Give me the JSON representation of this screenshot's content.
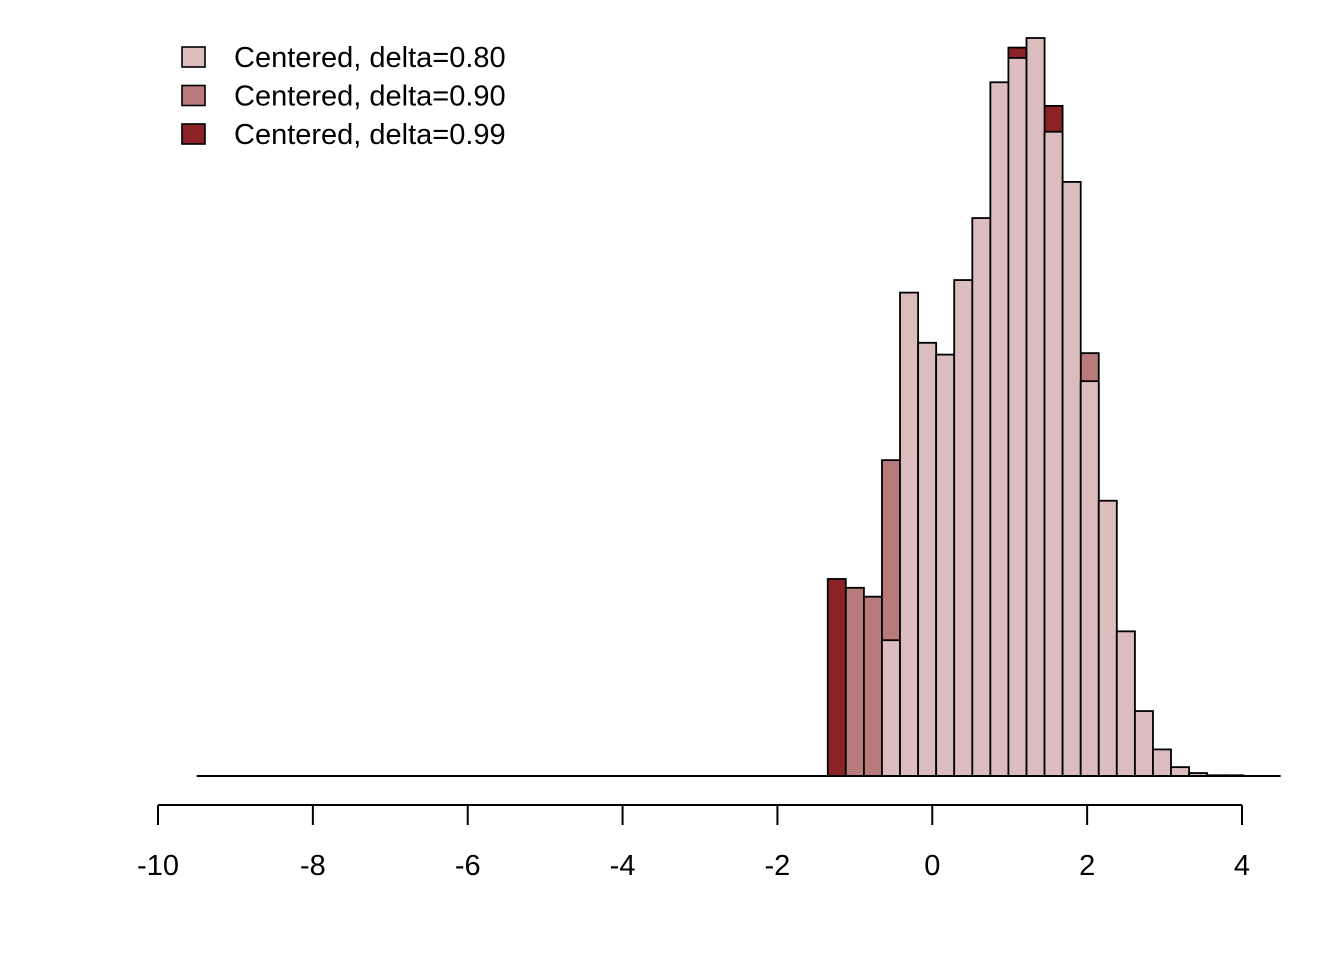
{
  "chart_data": {
    "type": "bar",
    "subtype": "overlaid-histogram",
    "title": "",
    "xlabel": "",
    "ylabel": "",
    "xlim": [
      -10,
      4
    ],
    "ylim": [
      0,
      1
    ],
    "y_axis_shown": false,
    "grid": false,
    "legend_position": "top-left",
    "bin_width": 0.233,
    "x_ticks": [
      -10,
      -8,
      -6,
      -4,
      -2,
      0,
      2,
      4
    ],
    "series": [
      {
        "name": "Centered, delta=0.80",
        "color": "#dcbdbe",
        "bins": [
          {
            "x0": -0.65,
            "x1": -0.417,
            "value": 0.184
          },
          {
            "x0": -0.417,
            "x1": -0.183,
            "value": 0.655
          },
          {
            "x0": -0.183,
            "x1": 0.05,
            "value": 0.587
          },
          {
            "x0": 0.05,
            "x1": 0.283,
            "value": 0.571
          },
          {
            "x0": 0.283,
            "x1": 0.517,
            "value": 0.672
          },
          {
            "x0": 0.517,
            "x1": 0.75,
            "value": 0.756
          },
          {
            "x0": 0.75,
            "x1": 0.983,
            "value": 0.94
          },
          {
            "x0": 0.983,
            "x1": 1.217,
            "value": 0.973
          },
          {
            "x0": 1.217,
            "x1": 1.45,
            "value": 1.0
          },
          {
            "x0": 1.45,
            "x1": 1.683,
            "value": 0.873
          },
          {
            "x0": 1.683,
            "x1": 1.917,
            "value": 0.805
          },
          {
            "x0": 1.917,
            "x1": 2.15,
            "value": 0.535
          },
          {
            "x0": 2.15,
            "x1": 2.383,
            "value": 0.373
          },
          {
            "x0": 2.383,
            "x1": 2.617,
            "value": 0.196
          },
          {
            "x0": 2.617,
            "x1": 2.85,
            "value": 0.088
          },
          {
            "x0": 2.85,
            "x1": 3.083,
            "value": 0.036
          },
          {
            "x0": 3.083,
            "x1": 3.317,
            "value": 0.012
          },
          {
            "x0": 3.317,
            "x1": 3.55,
            "value": 0.004
          },
          {
            "x0": 3.55,
            "x1": 3.783,
            "value": 0.001
          },
          {
            "x0": 3.783,
            "x1": 4.017,
            "value": 0.001
          }
        ]
      },
      {
        "name": "Centered, delta=0.90",
        "color": "#b87a7a",
        "bins": [
          {
            "x0": -1.117,
            "x1": -0.883,
            "value": 0.255
          },
          {
            "x0": -0.883,
            "x1": -0.65,
            "value": 0.243
          },
          {
            "x0": -0.65,
            "x1": -0.417,
            "value": 0.428
          },
          {
            "x0": 1.917,
            "x1": 2.15,
            "value": 0.573
          }
        ]
      },
      {
        "name": "Centered, delta=0.99",
        "color": "#8b2227",
        "bins": [
          {
            "x0": -1.35,
            "x1": -1.117,
            "value": 0.267
          },
          {
            "x0": 0.983,
            "x1": 1.217,
            "value": 0.987
          },
          {
            "x0": 1.45,
            "x1": 1.683,
            "value": 0.908
          }
        ]
      }
    ],
    "baseline": {
      "x0": -9.5,
      "x1": 4.5
    }
  }
}
